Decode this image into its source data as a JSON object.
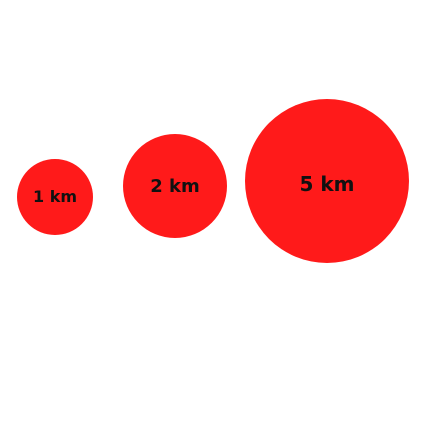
{
  "colors": {
    "circle_fill": "#ff1a1a",
    "label_text": "#111111",
    "background": "#ffffff"
  },
  "circles": [
    {
      "label": "1 km",
      "radius_km": 1
    },
    {
      "label": "2 km",
      "radius_km": 2
    },
    {
      "label": "5 km",
      "radius_km": 5
    }
  ]
}
